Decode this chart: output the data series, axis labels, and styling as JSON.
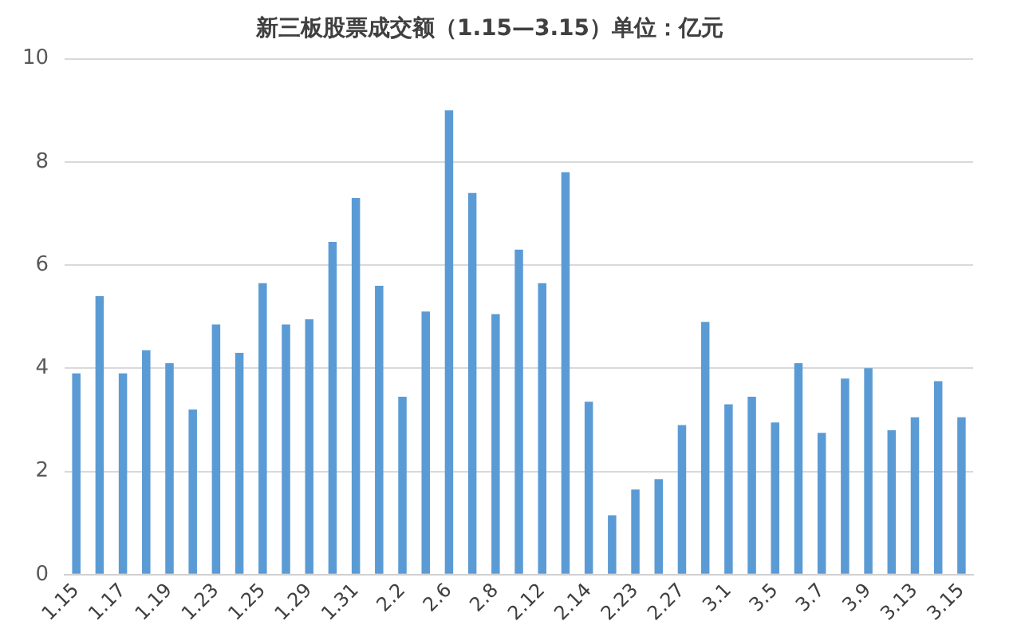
{
  "chart_data": {
    "type": "bar",
    "title": "新三板股票成交额（1.15—3.15）单位：亿元",
    "categories": [
      "1.15",
      null,
      "1.17",
      null,
      "1.19",
      null,
      "1.23",
      null,
      "1.25",
      null,
      "1.29",
      null,
      "1.31",
      null,
      "2.2",
      null,
      "2.6",
      null,
      "2.8",
      null,
      "2.12",
      null,
      "2.14",
      null,
      "2.23",
      null,
      "2.27",
      null,
      "3.1",
      null,
      "3.5",
      null,
      "3.7",
      null,
      "3.9",
      null,
      "3.13",
      null,
      "3.15"
    ],
    "values": [
      3.9,
      5.4,
      3.9,
      4.35,
      4.1,
      3.2,
      4.85,
      4.3,
      5.65,
      4.85,
      4.95,
      6.45,
      7.3,
      5.6,
      3.45,
      5.1,
      9.0,
      7.4,
      5.05,
      6.3,
      5.65,
      7.8,
      3.35,
      1.15,
      1.65,
      1.85,
      2.9,
      4.9,
      3.3,
      3.45,
      2.95,
      4.1,
      2.75,
      3.8,
      4.0,
      2.8,
      3.05,
      3.75,
      3.05
    ],
    "color": "#5b9bd5",
    "ylim": [
      0,
      10
    ],
    "yticks": [
      0,
      2,
      4,
      6,
      8,
      10
    ],
    "grid": "y",
    "legend": false
  }
}
